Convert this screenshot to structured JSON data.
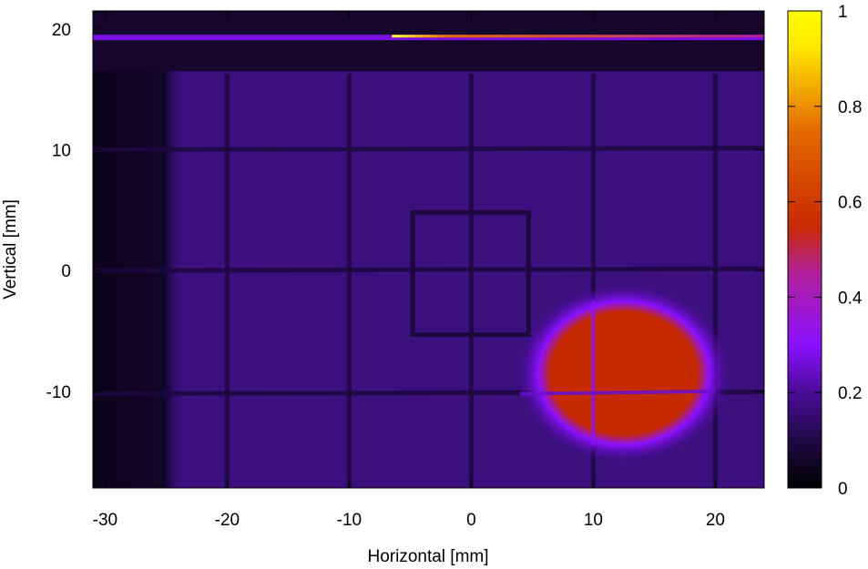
{
  "chart_data": {
    "type": "heatmap",
    "title": "",
    "xlabel": "Horizontal [mm]",
    "ylabel": "Vertical [mm]",
    "xlim": [
      -31,
      24
    ],
    "ylim": [
      -18,
      21.5
    ],
    "xticks": [
      {
        "value": -30,
        "label": "-30"
      },
      {
        "value": -20,
        "label": "-20"
      },
      {
        "value": -10,
        "label": "-10"
      },
      {
        "value": 0,
        "label": "0"
      },
      {
        "value": 10,
        "label": "10"
      },
      {
        "value": 20,
        "label": "20"
      }
    ],
    "yticks": [
      {
        "value": -10,
        "label": "-10"
      },
      {
        "value": 0,
        "label": "0"
      },
      {
        "value": 10,
        "label": "10"
      },
      {
        "value": 20,
        "label": "20"
      }
    ],
    "colorbar": {
      "range": [
        0,
        1
      ],
      "ticks": [
        {
          "value": 0,
          "label": "0"
        },
        {
          "value": 0.2,
          "label": "0.2"
        },
        {
          "value": 0.4,
          "label": "0.4"
        },
        {
          "value": 0.6,
          "label": "0.6"
        },
        {
          "value": 0.8,
          "label": "0.8"
        },
        {
          "value": 1,
          "label": "1"
        }
      ],
      "colormap": [
        "#000000",
        "#1f0a45",
        "#4a0c96",
        "#8a10ff",
        "#b0209a",
        "#c82a00",
        "#e36a00",
        "#ffe600",
        "#ffff00"
      ]
    },
    "background_intensity": 0.12,
    "features": {
      "grid_lines_x": [
        -20,
        -10,
        0,
        10,
        20
      ],
      "grid_lines_y": [
        0,
        10,
        -10.2
      ],
      "square_outline": {
        "x": [
          -4.8,
          4.7
        ],
        "y": [
          -5.3,
          4.8
        ]
      },
      "beam_spot": {
        "center": [
          12.5,
          -8.5
        ],
        "semi_axes": [
          6.5,
          5.5
        ],
        "peak": 0.55
      },
      "top_bright_line": {
        "y": 19.3,
        "x_start": -6.5,
        "x_end": 24,
        "peak": 1.0
      },
      "dark_left_band": {
        "x": [
          -31,
          -24.5
        ]
      }
    }
  }
}
